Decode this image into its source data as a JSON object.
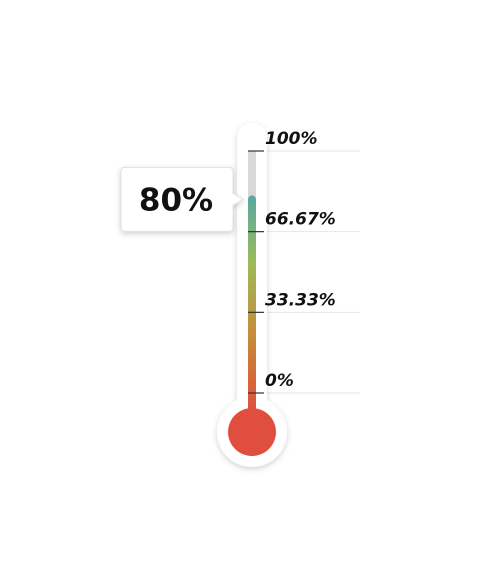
{
  "chart_data": {
    "type": "thermometer",
    "value": 80,
    "value_label": "80%",
    "ylim": [
      0,
      100
    ],
    "ticks": [
      {
        "value": 100,
        "label": "100%"
      },
      {
        "value": 66.67,
        "label": "66.67%"
      },
      {
        "value": 33.33,
        "label": "33.33%"
      },
      {
        "value": 0,
        "label": "0%"
      }
    ],
    "colors": {
      "low": "#e04e3e",
      "mid_low": "#c8893a",
      "mid": "#9bbb59",
      "high": "#5fa8a0",
      "empty_tube": "#d9d9d9",
      "bulb": "#e04e3e"
    }
  }
}
